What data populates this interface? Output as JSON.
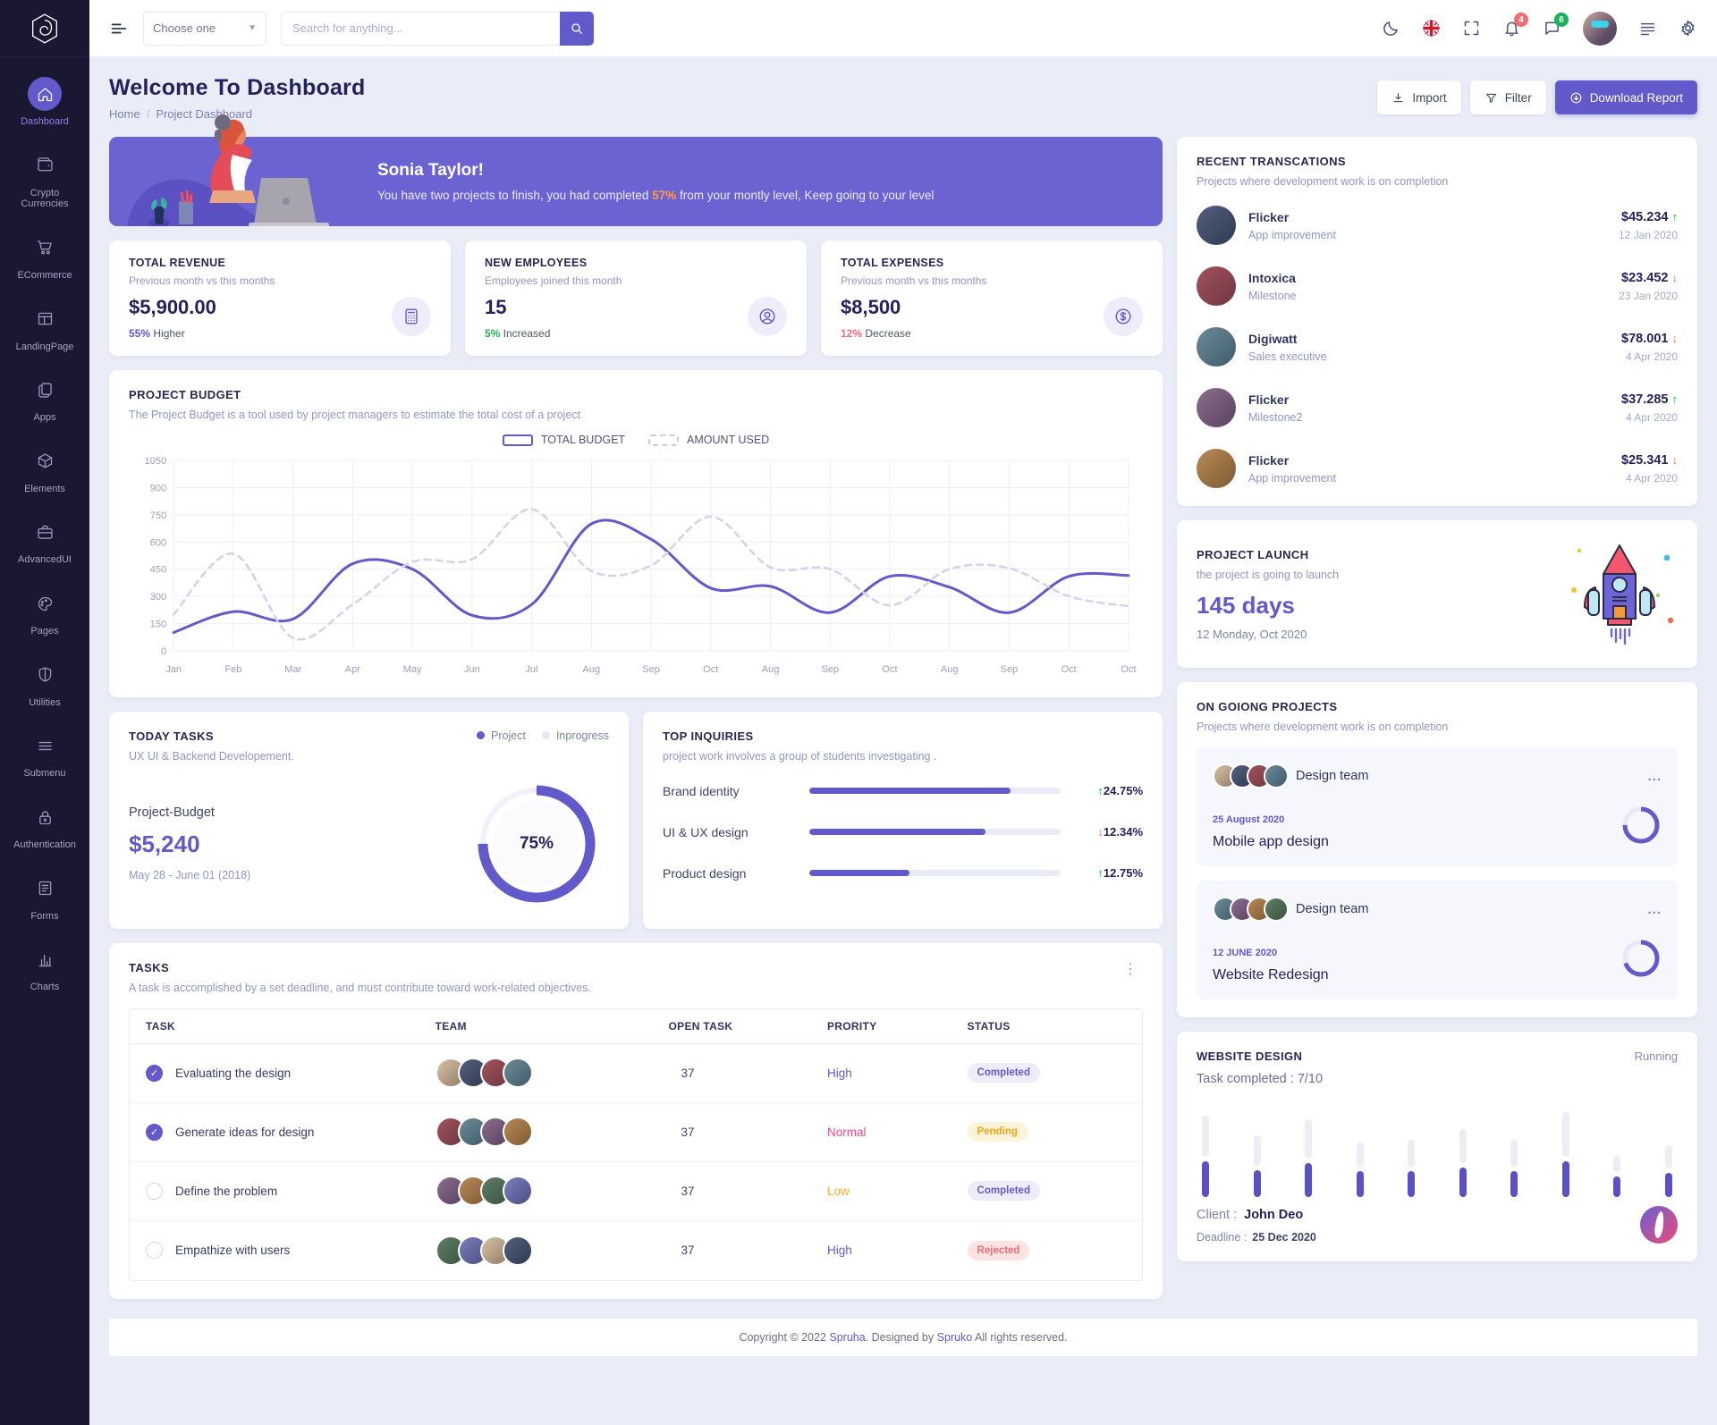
{
  "colors": {
    "primary": "#6259ca",
    "banner": "#6c63d2",
    "sidebar": "#191731",
    "green": "#19b159",
    "red": "#f16d75",
    "orange": "#ffab2e",
    "pink": "#f3478a",
    "warning": "#ffb209",
    "highlight": "#ff9b40"
  },
  "sidebar": {
    "items": [
      {
        "label": "Dashboard",
        "icon": "home",
        "active": true
      },
      {
        "label": "Crypto Currencies",
        "icon": "wallet",
        "active": false
      },
      {
        "label": "ECommerce",
        "icon": "cart",
        "active": false
      },
      {
        "label": "LandingPage",
        "icon": "layout",
        "active": false
      },
      {
        "label": "Apps",
        "icon": "apps",
        "active": false
      },
      {
        "label": "Elements",
        "icon": "cube",
        "active": false
      },
      {
        "label": "AdvancedUI",
        "icon": "briefcase",
        "active": false
      },
      {
        "label": "Pages",
        "icon": "palette",
        "active": false
      },
      {
        "label": "Utilities",
        "icon": "shield",
        "active": false
      },
      {
        "label": "Submenu",
        "icon": "menu",
        "active": false
      },
      {
        "label": "Authentication",
        "icon": "lock",
        "active": false
      },
      {
        "label": "Forms",
        "icon": "form",
        "active": false
      },
      {
        "label": "Charts",
        "icon": "chart",
        "active": false
      }
    ]
  },
  "header": {
    "select_value": "Choose one",
    "search_placeholder": "Search for anything...",
    "notifications_badge": "4",
    "messages_badge": "6"
  },
  "page": {
    "title": "Welcome To Dashboard",
    "breadcrumb_home": "Home",
    "breadcrumb_current": "Project Dashboard",
    "import_label": "Import",
    "filter_label": "Filter",
    "download_label": "Download Report"
  },
  "banner": {
    "greeting": "Sonia Taylor!",
    "message_pre": "You have two projects to finish, you had completed ",
    "highlight": "57%",
    "message_post": " from your montly level, Keep going to your level"
  },
  "stats": [
    {
      "title": "TOTAL REVENUE",
      "subtitle": "Previous month vs this months",
      "value": "$5,900.00",
      "change": "55%",
      "change_suffix": " Higher",
      "tone": "purple",
      "icon": "calculator"
    },
    {
      "title": "NEW EMPLOYEES",
      "subtitle": "Employees joined this month",
      "value": "15",
      "change": "5%",
      "change_suffix": " Increased",
      "tone": "green",
      "icon": "user"
    },
    {
      "title": "TOTAL EXPENSES",
      "subtitle": "Previous month vs this months",
      "value": "$8,500",
      "change": "12%",
      "change_suffix": " Decrease",
      "tone": "red",
      "icon": "dollar"
    }
  ],
  "chart_data": {
    "type": "line",
    "title": "PROJECT BUDGET",
    "subtitle": "The Project Budget is a tool used by project managers to estimate the total cost of a project",
    "legend": [
      "TOTAL BUDGET",
      "AMOUNT USED"
    ],
    "legend_position": "top",
    "grid": true,
    "x_labels": [
      "Jan",
      "Feb",
      "Mar",
      "Apr",
      "May",
      "Jun",
      "Jul",
      "Aug",
      "Sep",
      "Oct",
      "Aug",
      "Sep",
      "Oct",
      "Aug",
      "Sep",
      "Oct",
      "Oct"
    ],
    "y_ticks": [
      1050,
      900,
      750,
      600,
      450,
      300,
      150,
      0
    ],
    "ylim": [
      0,
      1050
    ],
    "series": [
      {
        "name": "TOTAL BUDGET",
        "style": "solid",
        "values": [
          100,
          215,
          175,
          480,
          450,
          195,
          255,
          700,
          615,
          345,
          355,
          210,
          410,
          350,
          210,
          410,
          415
        ]
      },
      {
        "name": "AMOUNT USED",
        "style": "dashed",
        "values": [
          200,
          535,
          70,
          255,
          490,
          505,
          780,
          440,
          470,
          740,
          460,
          450,
          250,
          450,
          455,
          300,
          245
        ]
      }
    ]
  },
  "today": {
    "title": "TODAY TASKS",
    "legend": [
      {
        "label": "Project",
        "tone": "purple"
      },
      {
        "label": "Inprogress",
        "tone": "light"
      }
    ],
    "subtitle": "UX UI & Backend Developement.",
    "budget_label": "Project-Budget",
    "budget_value": "$5,240",
    "date_range": "May 28 - June 01 (2018)",
    "percent": "75%",
    "percent_value": 75
  },
  "inquiries": {
    "title": "TOP INQUIRIES",
    "subtitle": "project work involves a group of students investigating .",
    "items": [
      {
        "label": "Brand identity",
        "progress": 80,
        "change": "24.75%",
        "dir": "up"
      },
      {
        "label": "UI & UX design",
        "progress": 70,
        "change": "12.34%",
        "dir": "down"
      },
      {
        "label": "Product design",
        "progress": 40,
        "change": "12.75%",
        "dir": "up"
      }
    ]
  },
  "tasks": {
    "title": "TASKS",
    "subtitle": "A task is accomplished by a set deadline, and must contribute toward work-related objectives.",
    "headers": [
      "TASK",
      "TEAM",
      "OPEN TASK",
      "PRORITY",
      "STATUS"
    ],
    "rows": [
      {
        "task": "Evaluating the design",
        "checked": true,
        "team_count": 4,
        "open": "37",
        "priority": "High",
        "priority_tone": "purple",
        "status": "Completed",
        "status_tone": "completed"
      },
      {
        "task": "Generate ideas for design",
        "checked": true,
        "team_count": 4,
        "open": "37",
        "priority": "Normal",
        "priority_tone": "pink",
        "status": "Pending",
        "status_tone": "pending"
      },
      {
        "task": "Define the problem",
        "checked": false,
        "team_count": 4,
        "open": "37",
        "priority": "Low",
        "priority_tone": "orange",
        "status": "Completed",
        "status_tone": "completed"
      },
      {
        "task": "Empathize with users",
        "checked": false,
        "team_count": 4,
        "open": "37",
        "priority": "High",
        "priority_tone": "purple",
        "status": "Rejected",
        "status_tone": "rejected"
      }
    ]
  },
  "transactions": {
    "title": "RECENT TRANSCATIONS",
    "subtitle": "Projects where development work is on completion",
    "items": [
      {
        "name": "Flicker",
        "role": "App improvement",
        "amount": "$45.234",
        "dir": "up",
        "date": "12 Jan 2020"
      },
      {
        "name": "Intoxica",
        "role": "Milestone",
        "amount": "$23.452",
        "dir": "down",
        "date": "23 Jan 2020"
      },
      {
        "name": "Digiwatt",
        "role": "Sales executive",
        "amount": "$78.001",
        "dir": "down",
        "date": "4 Apr 2020"
      },
      {
        "name": "Flicker",
        "role": "Milestone2",
        "amount": "$37.285",
        "dir": "up",
        "date": "4 Apr 2020"
      },
      {
        "name": "Flicker",
        "role": "App improvement",
        "amount": "$25.341",
        "dir": "down",
        "date": "4 Apr 2020"
      }
    ]
  },
  "launch": {
    "title": "PROJECT LAUNCH",
    "subtitle": "the project is going to launch",
    "days": "145 days",
    "date": "12 Monday, Oct 2020"
  },
  "ongoing": {
    "title": "ON GOIONG PROJECTS",
    "subtitle": "Projects where development work is on completion",
    "projects": [
      {
        "team": "Design team",
        "team_count": 4,
        "date": "25 August 2020",
        "name": "Mobile app design",
        "progress": 75
      },
      {
        "team": "Design team",
        "team_count": 4,
        "date": "12 JUNE 2020",
        "name": "Website Redesign",
        "progress": 70
      }
    ]
  },
  "website": {
    "title": "WEBSITE DESIGN",
    "status": "Running",
    "completed": "Task completed : 7/10",
    "bars": [
      {
        "track": 46,
        "fill": 40
      },
      {
        "track": 34,
        "fill": 30
      },
      {
        "track": 44,
        "fill": 38
      },
      {
        "track": 27,
        "fill": 29
      },
      {
        "track": 30,
        "fill": 29
      },
      {
        "track": 38,
        "fill": 33
      },
      {
        "track": 30,
        "fill": 29
      },
      {
        "track": 50,
        "fill": 40
      },
      {
        "track": 18,
        "fill": 23
      },
      {
        "track": 26,
        "fill": 27
      }
    ],
    "client_label": "Client :",
    "client": "John Deo",
    "deadline_label": "Deadline :",
    "deadline": "25 Dec 2020"
  },
  "footer": {
    "pre": "Copyright © 2022 ",
    "brand": "Spruha",
    "mid": ". Designed by ",
    "brand2": "Spruko",
    "post": " All rights reserved."
  }
}
